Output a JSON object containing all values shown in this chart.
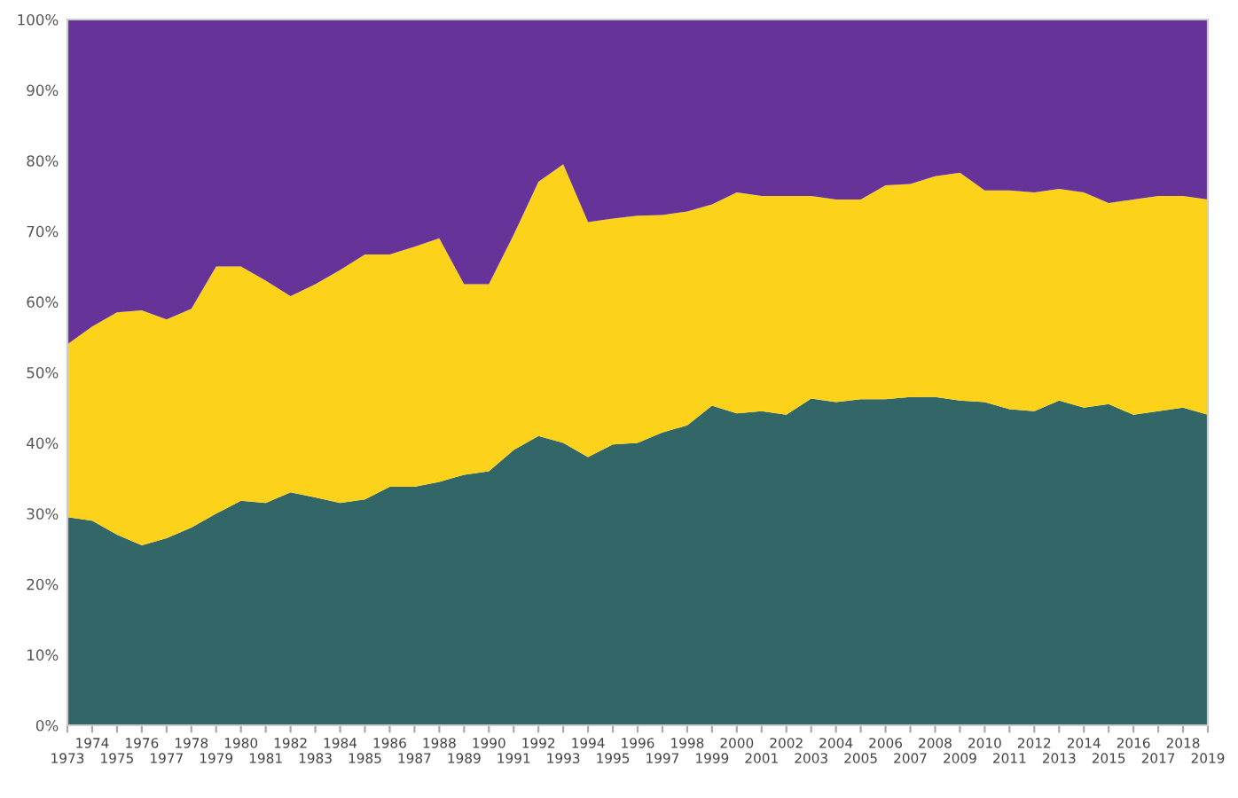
{
  "chart_data": {
    "type": "area",
    "stacked": true,
    "categories": [
      "1973",
      "1974",
      "1975",
      "1976",
      "1977",
      "1978",
      "1979",
      "1980",
      "1981",
      "1982",
      "1983",
      "1984",
      "1985",
      "1986",
      "1987",
      "1988",
      "1989",
      "1990",
      "1991",
      "1992",
      "1993",
      "1994",
      "1995",
      "1996",
      "1997",
      "1998",
      "1999",
      "2000",
      "2001",
      "2002",
      "2003",
      "2004",
      "2005",
      "2006",
      "2007",
      "2008",
      "2009",
      "2010",
      "2011",
      "2012",
      "2013",
      "2014",
      "2015",
      "2016",
      "2017",
      "2018",
      "2019"
    ],
    "series": [
      {
        "color": "#336666",
        "values": [
          29.5,
          29,
          27,
          25.5,
          26.5,
          28,
          30,
          31.8,
          31.5,
          33,
          32.3,
          31.5,
          32,
          33.8,
          33.8,
          34.5,
          35.5,
          36,
          39,
          41,
          40,
          38,
          39.8,
          40,
          41.5,
          42.5,
          45.3,
          44.2,
          44.5,
          44,
          46.3,
          45.8,
          46.2,
          46.2,
          46.5,
          46.5,
          46,
          45.8,
          44.8,
          44.5,
          46,
          45,
          45.5,
          44,
          44.5,
          45,
          44
        ]
      },
      {
        "color": "#fdd21b",
        "values": [
          24.5,
          27.5,
          31.5,
          33.3,
          31,
          31,
          35,
          33.2,
          31.5,
          27.8,
          30.2,
          33,
          34.7,
          32.9,
          34,
          34.5,
          27,
          26.5,
          30.5,
          36,
          39.5,
          33.3,
          32,
          32.2,
          30.8,
          30.3,
          28.5,
          31.3,
          30.5,
          31,
          28.7,
          28.7,
          28.3,
          30.3,
          30.2,
          31.3,
          32.3,
          30,
          31,
          31,
          30,
          30.5,
          28.5,
          30.5,
          30.5,
          30,
          30.5
        ]
      },
      {
        "color": "#663399",
        "values": [
          46,
          43.5,
          41.5,
          41.2,
          42.5,
          41,
          35,
          35,
          37,
          39.2,
          37.5,
          35.5,
          33.3,
          33.3,
          32.2,
          31,
          37.5,
          37.5,
          30.5,
          23,
          20.5,
          28.7,
          28.2,
          27.8,
          27.7,
          27.2,
          26.2,
          24.5,
          25,
          25,
          25,
          25.5,
          25.5,
          23.5,
          23.3,
          22.2,
          21.7,
          24.2,
          24.2,
          24.5,
          24,
          24.5,
          26,
          25.5,
          25,
          25,
          25.5
        ]
      }
    ],
    "ylim": [
      0,
      100
    ],
    "yticks": [
      {
        "value": 0,
        "label": "0%"
      },
      {
        "value": 10,
        "label": "10%"
      },
      {
        "value": 20,
        "label": "20%"
      },
      {
        "value": 30,
        "label": "30%"
      },
      {
        "value": 40,
        "label": "40%"
      },
      {
        "value": 50,
        "label": "50%"
      },
      {
        "value": 60,
        "label": "60%"
      },
      {
        "value": 70,
        "label": "70%"
      },
      {
        "value": 80,
        "label": "80%"
      },
      {
        "value": 90,
        "label": "90%"
      },
      {
        "value": 100,
        "label": "100%"
      }
    ],
    "grid": false
  }
}
